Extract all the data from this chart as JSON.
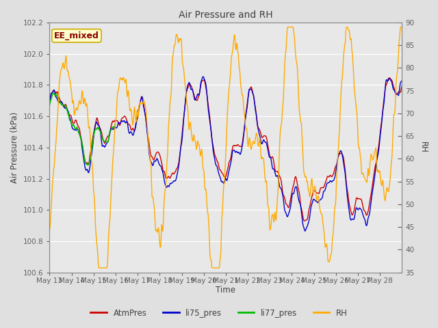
{
  "title": "Air Pressure and RH",
  "xlabel": "Time",
  "ylabel_left": "Air Pressure (kPa)",
  "ylabel_right": "RH",
  "annotation": "EE_mixed",
  "ylim_left": [
    100.6,
    102.2
  ],
  "ylim_right": [
    35,
    90
  ],
  "yticks_left": [
    100.6,
    100.8,
    101.0,
    101.2,
    101.4,
    101.6,
    101.8,
    102.0,
    102.2
  ],
  "yticks_right": [
    35,
    40,
    45,
    50,
    55,
    60,
    65,
    70,
    75,
    80,
    85,
    90
  ],
  "xtick_labels": [
    "May 13",
    "May 14",
    "May 15",
    "May 16",
    "May 17",
    "May 18",
    "May 19",
    "May 20",
    "May 21",
    "May 22",
    "May 23",
    "May 24",
    "May 25",
    "May 26",
    "May 27",
    "May 28"
  ],
  "colors": {
    "AtmPres": "#cc0000",
    "li75_pres": "#0000cc",
    "li77_pres": "#00bb00",
    "RH": "#ffaa00"
  },
  "background_color": "#e0e0e0",
  "plot_bg_color": "#e8e8e8",
  "annotation_bg": "#ffffcc",
  "annotation_border": "#ccaa00",
  "annotation_text_color": "#880000",
  "title_color": "#404040",
  "label_color": "#404040",
  "tick_color": "#606060",
  "grid_color": "#ffffff",
  "figsize": [
    6.4,
    4.8
  ],
  "dpi": 100
}
